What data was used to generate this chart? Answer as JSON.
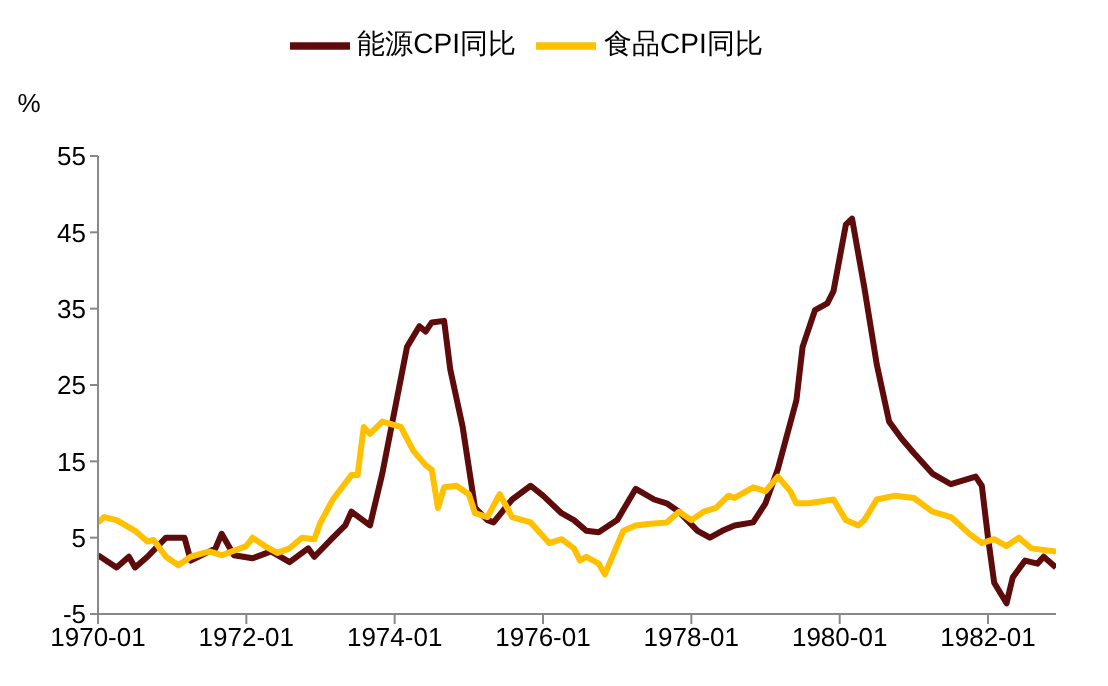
{
  "chart_data": {
    "type": "line",
    "ylabel": "%",
    "legend": "top",
    "marker": "none",
    "line_style": "solid",
    "grid": false,
    "xlim": [
      "1970-01",
      "1982-12"
    ],
    "xticks": [
      "1970-01",
      "1972-01",
      "1974-01",
      "1976-01",
      "1978-01",
      "1980-01",
      "1982-01"
    ],
    "ylim": [
      -5,
      55
    ],
    "yticks": [
      -5,
      5,
      15,
      25,
      35,
      45,
      55
    ],
    "series": [
      {
        "name": "能源CPI同比",
        "color": "#5e0b0b",
        "x": [
          "1970-01",
          "1970-04",
          "1970-06",
          "1970-07",
          "1970-09",
          "1970-12",
          "1971-03",
          "1971-04",
          "1971-08",
          "1971-09",
          "1971-11",
          "1972-02",
          "1972-05",
          "1972-08",
          "1972-11",
          "1972-12",
          "1973-03",
          "1973-05",
          "1973-06",
          "1973-09",
          "1973-11",
          "1974-03",
          "1974-05",
          "1974-06",
          "1974-07",
          "1974-09",
          "1974-10",
          "1974-12",
          "1975-02",
          "1975-04",
          "1975-05",
          "1975-08",
          "1975-11",
          "1976-01",
          "1976-04",
          "1976-06",
          "1976-08",
          "1976-10",
          "1977-01",
          "1977-04",
          "1977-07",
          "1977-09",
          "1977-11",
          "1978-02",
          "1978-04",
          "1978-06",
          "1978-08",
          "1978-11",
          "1979-01",
          "1979-03",
          "1979-06",
          "1979-07",
          "1979-09",
          "1979-11",
          "1979-12",
          "1980-02",
          "1980-03",
          "1980-05",
          "1980-07",
          "1980-09",
          "1980-11",
          "1981-01",
          "1981-04",
          "1981-07",
          "1981-11",
          "1981-12",
          "1982-01",
          "1982-02",
          "1982-04",
          "1982-05",
          "1982-07",
          "1982-09",
          "1982-10",
          "1982-12"
        ],
        "values": [
          2.7,
          1.1,
          2.5,
          1.1,
          2.5,
          5,
          5,
          2,
          3.6,
          5.5,
          2.7,
          2.3,
          3.2,
          1.8,
          3.6,
          2.5,
          5,
          6.6,
          8.4,
          6.6,
          13.4,
          30,
          32.7,
          32,
          33.2,
          33.4,
          27,
          19.5,
          8.9,
          7.3,
          7,
          10,
          11.8,
          10.5,
          8.2,
          7.3,
          5.9,
          5.7,
          7.3,
          11.4,
          10,
          9.5,
          8.4,
          5.9,
          5,
          5.9,
          6.6,
          7,
          9.5,
          14,
          23,
          30,
          34.8,
          35.7,
          37.3,
          46,
          46.8,
          37.7,
          27.7,
          20.2,
          18,
          16.1,
          13.4,
          12,
          13,
          11.8,
          5,
          -0.9,
          -3.6,
          -0.2,
          2,
          1.6,
          2.5,
          1.1
        ]
      },
      {
        "name": "食品CPI同比",
        "color": "#ffc000",
        "x": [
          "1970-01",
          "1970-02",
          "1970-04",
          "1970-07",
          "1970-09",
          "1970-10",
          "1970-12",
          "1971-02",
          "1971-04",
          "1971-07",
          "1971-09",
          "1972-01",
          "1972-02",
          "1972-04",
          "1972-06",
          "1972-08",
          "1972-10",
          "1972-12",
          "1973-01",
          "1973-03",
          "1973-06",
          "1973-07",
          "1973-08",
          "1973-09",
          "1973-11",
          "1974-02",
          "1974-04",
          "1974-06",
          "1974-07",
          "1974-08",
          "1974-09",
          "1974-11",
          "1975-01",
          "1975-02",
          "1975-04",
          "1975-06",
          "1975-08",
          "1975-11",
          "1976-02",
          "1976-04",
          "1976-06",
          "1976-07",
          "1976-08",
          "1976-10",
          "1976-11",
          "1977-02",
          "1977-04",
          "1977-06",
          "1977-09",
          "1977-11",
          "1978-01",
          "1978-03",
          "1978-05",
          "1978-07",
          "1978-08",
          "1978-11",
          "1979-01",
          "1979-03",
          "1979-05",
          "1979-06",
          "1979-08",
          "1979-12",
          "1980-02",
          "1980-04",
          "1980-05",
          "1980-07",
          "1980-10",
          "1981-01",
          "1981-04",
          "1981-07",
          "1981-10",
          "1981-12",
          "1982-02",
          "1982-04",
          "1982-06",
          "1982-08",
          "1982-12"
        ],
        "values": [
          7,
          7.7,
          7.3,
          5.9,
          4.5,
          4.7,
          2.5,
          1.4,
          2.5,
          3.2,
          2.7,
          3.9,
          5,
          3.9,
          3,
          3.6,
          5,
          4.8,
          7,
          10,
          13.2,
          13.2,
          19.5,
          18.6,
          20.2,
          19.5,
          16.4,
          14.5,
          13.9,
          8.9,
          11.6,
          11.8,
          10.7,
          8.2,
          7.7,
          10.7,
          7.7,
          7,
          4.3,
          4.8,
          3.6,
          2,
          2.5,
          1.6,
          0.2,
          5.9,
          6.6,
          6.8,
          7,
          8.4,
          7.3,
          8.4,
          8.9,
          10.5,
          10.2,
          11.6,
          11.1,
          13,
          11.1,
          9.5,
          9.5,
          10,
          7.3,
          6.6,
          7.3,
          10,
          10.5,
          10.2,
          8.4,
          7.7,
          5.5,
          4.3,
          4.8,
          3.9,
          5,
          3.6,
          3.2
        ]
      }
    ]
  }
}
